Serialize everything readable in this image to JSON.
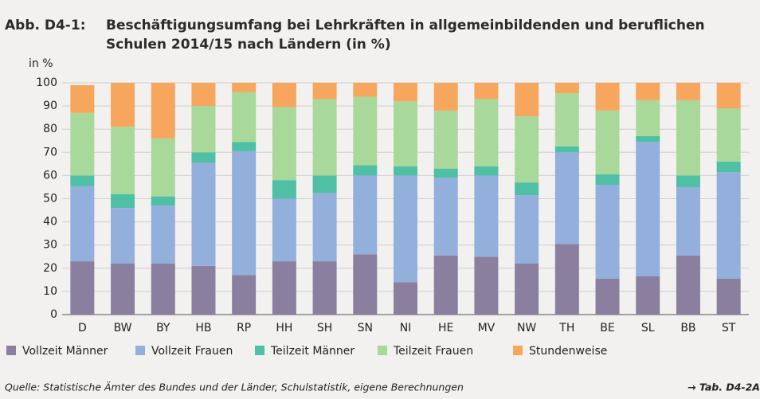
{
  "chart_data": {
    "type": "stacked_bar",
    "figure_label": "Abb. D4-1:",
    "title": [
      "Beschäftigungsumfang bei Lehrkräften in allgemeinbildenden und beruflichen",
      "Schulen 2014/15 nach Ländern (in %)"
    ],
    "y_label": "in %",
    "categories": [
      "D",
      "BW",
      "BY",
      "HB",
      "RP",
      "HH",
      "SH",
      "SN",
      "NI",
      "HE",
      "MV",
      "NW",
      "TH",
      "BE",
      "SL",
      "BB",
      "ST"
    ],
    "series": [
      {
        "name": "Vollzeit Männer",
        "color": "#8b7fa0",
        "values": [
          23,
          22,
          22,
          21,
          17,
          23,
          23,
          26,
          14,
          25.5,
          25,
          22,
          30.5,
          15.5,
          16.5,
          25.5,
          15.5
        ]
      },
      {
        "name": "Vollzeit Frauen",
        "color": "#93afdc",
        "values": [
          32.5,
          24,
          25,
          44.5,
          53.5,
          27,
          29.5,
          34,
          46,
          33.5,
          35,
          29.5,
          39.5,
          40.5,
          58,
          29.5,
          46
        ]
      },
      {
        "name": "Teilzeit Männer",
        "color": "#4fbfa5",
        "values": [
          4.5,
          6,
          4,
          4.5,
          4,
          8,
          7.5,
          4.5,
          4,
          4,
          4,
          5.5,
          2.5,
          4.5,
          2.5,
          5,
          4.5
        ]
      },
      {
        "name": "Teilzeit Frauen",
        "color": "#a9d89b",
        "values": [
          27,
          29,
          25,
          20,
          21.5,
          31.5,
          33,
          29.5,
          28,
          25,
          29,
          28.5,
          23,
          27.5,
          15.5,
          32.5,
          23
        ]
      },
      {
        "name": "Stundenweise",
        "color": "#f7a65e",
        "values": [
          12,
          19,
          24,
          10,
          4,
          10.5,
          7,
          6,
          8,
          12,
          7,
          14.5,
          4.5,
          12,
          7.5,
          7.5,
          11
        ]
      }
    ],
    "ylim": [
      0,
      100
    ],
    "yticks": [
      0,
      10,
      20,
      30,
      40,
      50,
      60,
      70,
      80,
      90,
      100
    ],
    "grid": true,
    "source": "Quelle: Statistische Ämter des Bundes und der Länder, Schulstatistik, eigene Berechnungen",
    "reference": "→ Tab. D4-2A"
  }
}
